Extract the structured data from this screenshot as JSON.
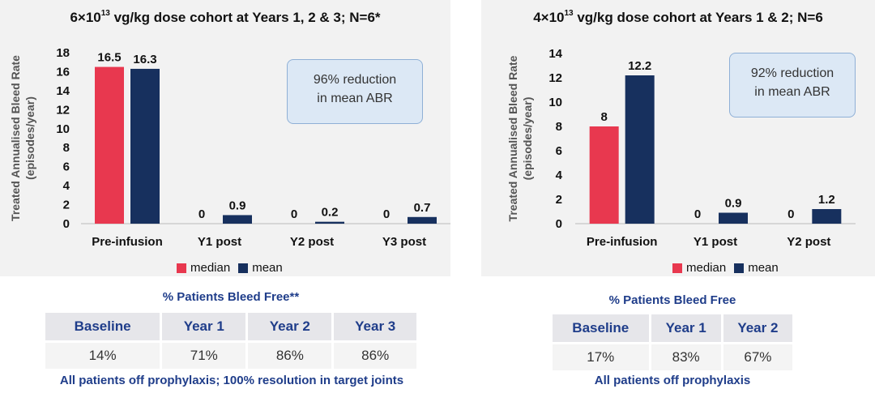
{
  "chart_data": [
    {
      "type": "bar",
      "title_main": "6×10",
      "title_sup": "13",
      "title_rest": " vg/kg dose cohort at Years 1, 2 & 3; N=6*",
      "ylabel_line1": "Treated Annualised Bleed Rate",
      "ylabel_line2": "(episodes/year)",
      "categories": [
        "Pre-infusion",
        "Y1 post",
        "Y2 post",
        "Y3 post"
      ],
      "series": [
        {
          "name": "median",
          "color": "#e8384f",
          "values": [
            16.5,
            0,
            0,
            0
          ],
          "labels": [
            "16.5",
            "0",
            "0",
            "0"
          ]
        },
        {
          "name": "mean",
          "color": "#17305e",
          "values": [
            16.3,
            0.9,
            0.2,
            0.7
          ],
          "labels": [
            "16.3",
            "0.9",
            "0.2",
            "0.7"
          ]
        }
      ],
      "ylim": [
        0,
        18
      ],
      "yticks": [
        0,
        2,
        4,
        6,
        8,
        10,
        12,
        14,
        16,
        18
      ],
      "grid": false,
      "legend": "bottom",
      "annotation": [
        "96% reduction",
        "in mean ABR"
      ]
    },
    {
      "type": "bar",
      "title_main": "4×10",
      "title_sup": "13",
      "title_rest": " vg/kg dose cohort at Years 1 & 2; N=6",
      "ylabel_line1": "Treated Annualised Bleed Rate",
      "ylabel_line2": "(episodes/year)",
      "categories": [
        "Pre-infusion",
        "Y1 post",
        "Y2 post"
      ],
      "series": [
        {
          "name": "median",
          "color": "#e8384f",
          "values": [
            8,
            0,
            0
          ],
          "labels": [
            "8",
            "0",
            "0"
          ]
        },
        {
          "name": "mean",
          "color": "#17305e",
          "values": [
            12.2,
            0.9,
            1.2
          ],
          "labels": [
            "12.2",
            "0.9",
            "1.2"
          ]
        }
      ],
      "ylim": [
        0,
        14
      ],
      "yticks": [
        0,
        2,
        4,
        6,
        8,
        10,
        12,
        14
      ],
      "grid": false,
      "legend": "bottom",
      "annotation": [
        "92% reduction",
        "in mean ABR"
      ]
    }
  ],
  "bleed_free_left": {
    "title": "% Patients Bleed Free**",
    "headers": [
      "Baseline",
      "Year 1",
      "Year 2",
      "Year 3"
    ],
    "values": [
      "14%",
      "71%",
      "86%",
      "86%"
    ],
    "footnote": "All patients off prophylaxis;  100% resolution  in target joints"
  },
  "bleed_free_right": {
    "title": "% Patients Bleed Free",
    "headers": [
      "Baseline",
      "Year 1",
      "Year 2"
    ],
    "values": [
      "17%",
      "83%",
      "67%"
    ],
    "footnote": "All patients off prophylaxis"
  }
}
